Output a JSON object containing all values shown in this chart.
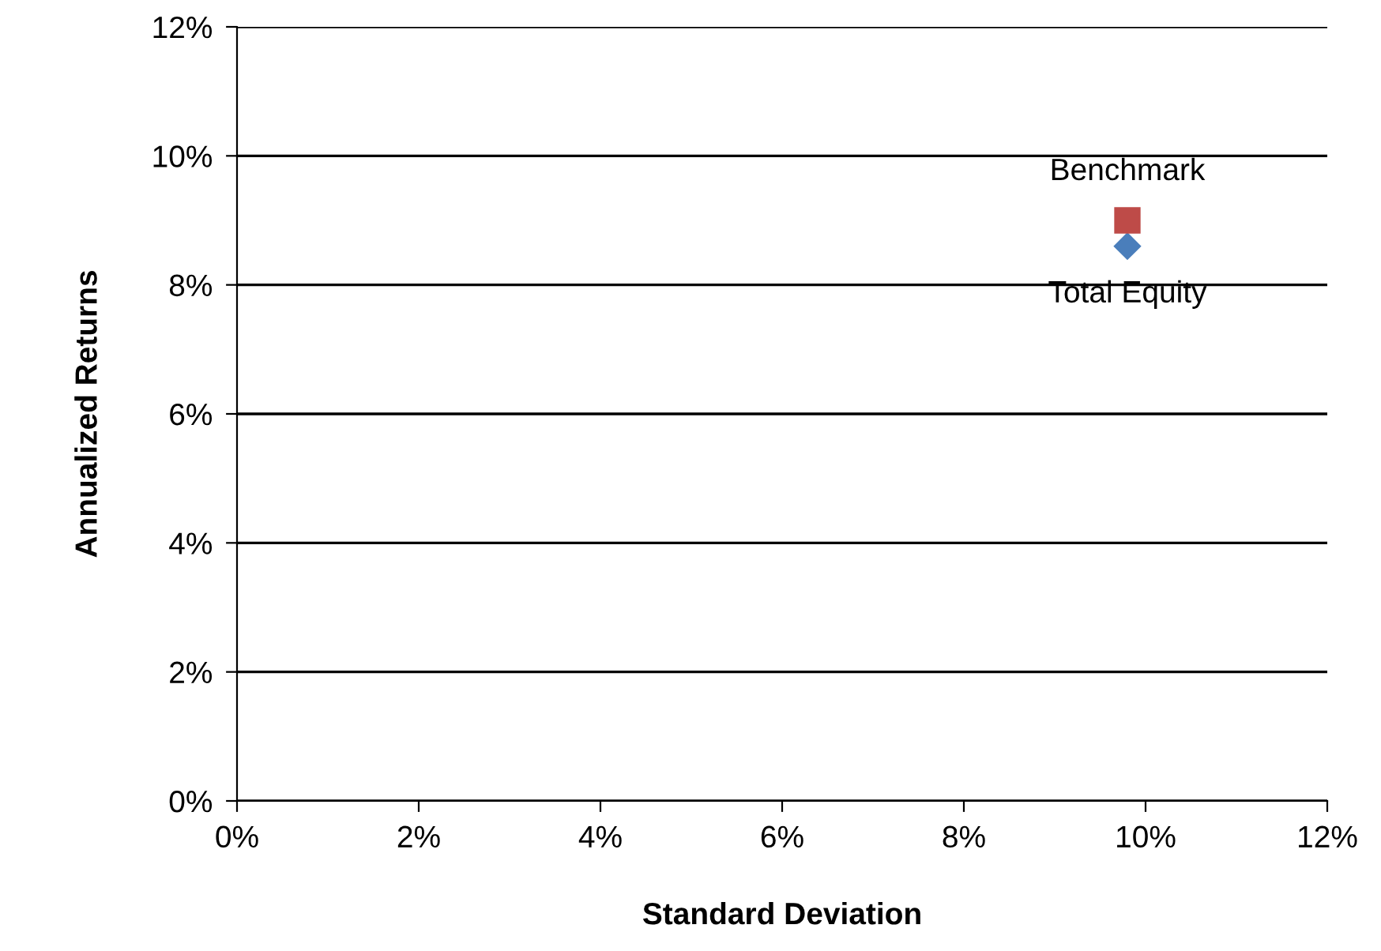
{
  "chart_data": {
    "type": "scatter",
    "xlabel": "Standard Deviation",
    "ylabel": "Annualized Returns",
    "series": [
      {
        "name": "Total Equity",
        "color": "#4a7ebb",
        "marker": "diamond",
        "x": [
          9.8
        ],
        "values": [
          8.6
        ]
      },
      {
        "name": "Benchmark",
        "color": "#be4b48",
        "marker": "square",
        "x": [
          9.8
        ],
        "values": [
          9.0
        ]
      }
    ],
    "xlim": [
      0,
      12
    ],
    "ylim": [
      0,
      12
    ],
    "xticks": [
      {
        "value": 0,
        "label": "0%"
      },
      {
        "value": 2,
        "label": "2%"
      },
      {
        "value": 4,
        "label": "4%"
      },
      {
        "value": 6,
        "label": "6%"
      },
      {
        "value": 8,
        "label": "8%"
      },
      {
        "value": 10,
        "label": "10%"
      },
      {
        "value": 12,
        "label": "12%"
      }
    ],
    "yticks": [
      {
        "value": 0,
        "label": "0%"
      },
      {
        "value": 2,
        "label": "2%"
      },
      {
        "value": 4,
        "label": "4%"
      },
      {
        "value": 6,
        "label": "6%"
      },
      {
        "value": 8,
        "label": "8%"
      },
      {
        "value": 10,
        "label": "10%"
      },
      {
        "value": 12,
        "label": "12%"
      }
    ],
    "grid": "y"
  }
}
